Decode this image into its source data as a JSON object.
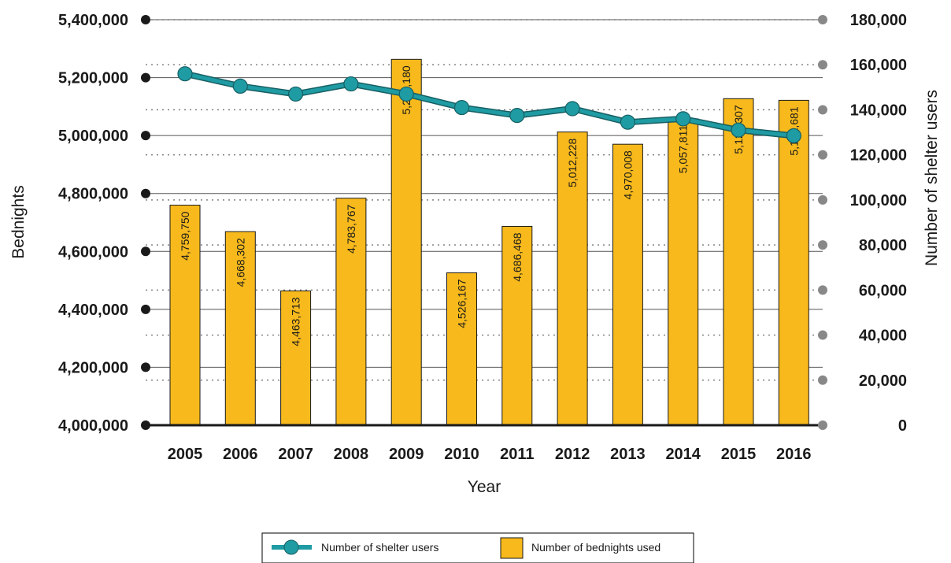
{
  "chart_data": {
    "type": "bar+line",
    "categories": [
      "2005",
      "2006",
      "2007",
      "2008",
      "2009",
      "2010",
      "2011",
      "2012",
      "2013",
      "2014",
      "2015",
      "2016"
    ],
    "xlabel": "Year",
    "ylabel_left": "Bednights",
    "ylabel_right": "Number of shelter users",
    "ylim_left": [
      4000000,
      5400000
    ],
    "ylim_right": [
      0,
      180000
    ],
    "left_ticks": [
      "4,000,000",
      "4,200,000",
      "4,400,000",
      "4,600,000",
      "4,800,000",
      "5,000,000",
      "5,200,000",
      "5,400,000"
    ],
    "right_ticks": [
      "0",
      "20,000",
      "40,000",
      "60,000",
      "80,000",
      "100,000",
      "120,000",
      "140,000",
      "160,000",
      "180,000"
    ],
    "series": [
      {
        "name": "Number of bednights used",
        "type": "bar",
        "axis": "left",
        "color": "#f7b91c",
        "values": [
          4759750,
          4668302,
          4463713,
          4783767,
          5263180,
          4526167,
          4686468,
          5012228,
          4970008,
          5057811,
          5127307,
          5121681
        ],
        "labels": [
          "4,759,750",
          "4,668,302",
          "4,463,713",
          "4,783,767",
          "5,263,180",
          "4,526,167",
          "4,686,468",
          "5,012,228",
          "4,970,008",
          "5,057,811",
          "5,127,307",
          "5,121,681"
        ]
      },
      {
        "name": "Number of shelter users",
        "type": "line",
        "axis": "right",
        "color": "#1f9ba3",
        "values": [
          156000,
          150500,
          147000,
          151500,
          147000,
          141000,
          137500,
          140500,
          134500,
          136000,
          131000,
          128500
        ]
      }
    ],
    "legend": {
      "position": "bottom-center",
      "items": [
        "Number of shelter users",
        "Number of bednights used"
      ]
    },
    "colors": {
      "bar": "#f7b91c",
      "line": "#1f9ba3",
      "left_dot": "#1a1a1a",
      "right_dot": "#888888"
    }
  }
}
